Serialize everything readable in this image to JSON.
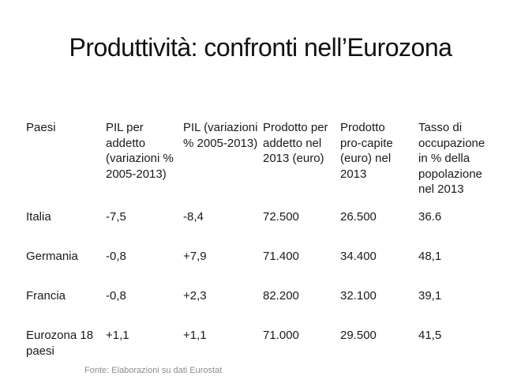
{
  "slide": {
    "title": "Produttività: confronti nell’Eurozona",
    "source_note": "Fonte: Elaborazioni su dati Eurostat"
  },
  "table": {
    "columns": [
      "Paesi",
      "PIL per addetto (variazioni % 2005-2013)",
      "PIL (variazioni % 2005-2013)",
      "Prodotto per addetto nel 2013 (euro)",
      "Prodotto pro-capite (euro) nel 2013",
      "Tasso di occupazione in % della popolazione nel 2013"
    ],
    "rows": [
      {
        "paese": "Italia",
        "values": [
          "-7,5",
          "-8,4",
          "72.500",
          "26.500",
          "36.6"
        ]
      },
      {
        "paese": "Germania",
        "values": [
          "-0,8",
          "+7,9",
          "71.400",
          "34.400",
          "48,1"
        ]
      },
      {
        "paese": "Francia",
        "values": [
          "-0,8",
          "+2,3",
          "82.200",
          "32.100",
          "39,1"
        ]
      },
      {
        "paese": "Eurozona 18 paesi",
        "values": [
          "+1,1",
          "+1,1",
          "71.000",
          "29.500",
          "41,5"
        ]
      }
    ]
  },
  "colors": {
    "text": "#1a1a1a",
    "source_note": "#8c8c8c",
    "background": "#ffffff"
  }
}
